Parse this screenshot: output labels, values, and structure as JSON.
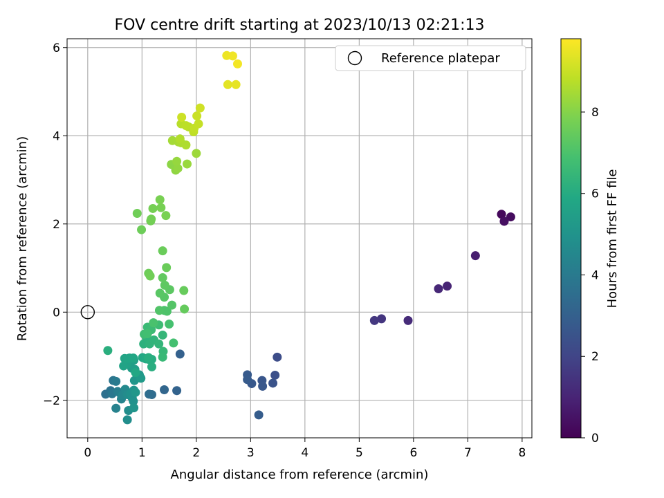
{
  "chart_data": {
    "type": "scatter",
    "title": "FOV centre drift starting at 2023/10/13 02:21:13",
    "xlabel": "Angular distance from reference (arcmin)",
    "ylabel": "Rotation from reference (arcmin)",
    "xlim": [
      -0.38,
      8.18
    ],
    "ylim": [
      -2.85,
      6.2
    ],
    "xticks": [
      0,
      1,
      2,
      3,
      4,
      5,
      6,
      7,
      8
    ],
    "yticks": [
      -2,
      0,
      2,
      4,
      6
    ],
    "grid": true,
    "legend": {
      "placement": "top-right",
      "entries": [
        "Reference platepar"
      ]
    },
    "reference_point": {
      "name": "Reference platepar",
      "x": 0,
      "y": 0
    },
    "colorbar": {
      "label": "Hours from first FF file",
      "colormap": "viridis",
      "range": [
        0,
        9.8
      ],
      "ticks": [
        0,
        2,
        4,
        6,
        8
      ]
    },
    "series": [
      {
        "points": [
          [
            7.62,
            2.22,
            0.2
          ],
          [
            7.79,
            2.16,
            0.3
          ],
          [
            7.67,
            2.06,
            0.4
          ],
          [
            7.14,
            1.28,
            0.8
          ],
          [
            6.62,
            0.59,
            1.0
          ],
          [
            6.46,
            0.53,
            1.1
          ],
          [
            5.9,
            -0.19,
            1.2
          ],
          [
            5.41,
            -0.15,
            1.5
          ],
          [
            5.28,
            -0.19,
            1.6
          ],
          [
            3.49,
            -1.02,
            2.3
          ],
          [
            3.45,
            -1.43,
            2.4
          ],
          [
            3.41,
            -1.61,
            2.5
          ],
          [
            3.21,
            -1.55,
            2.6
          ],
          [
            3.22,
            -1.68,
            2.65
          ],
          [
            3.02,
            -1.62,
            2.7
          ],
          [
            2.94,
            -1.42,
            2.75
          ],
          [
            2.94,
            -1.53,
            2.8
          ],
          [
            3.15,
            -2.33,
            2.85
          ],
          [
            1.7,
            -0.95,
            3.0
          ],
          [
            1.64,
            -1.78,
            3.1
          ],
          [
            1.41,
            -1.76,
            3.2
          ],
          [
            1.18,
            -1.87,
            3.4
          ],
          [
            1.13,
            -1.86,
            3.5
          ],
          [
            0.33,
            -1.86,
            3.6
          ],
          [
            0.42,
            -1.78,
            3.7
          ],
          [
            0.47,
            -1.55,
            3.8
          ],
          [
            0.45,
            -1.85,
            3.9
          ],
          [
            0.52,
            -1.57,
            4.0
          ],
          [
            0.55,
            -1.8,
            4.1
          ],
          [
            0.59,
            -1.83,
            4.2
          ],
          [
            0.52,
            -2.18,
            4.3
          ],
          [
            0.62,
            -1.97,
            4.4
          ],
          [
            0.64,
            -1.88,
            4.5
          ],
          [
            0.69,
            -1.75,
            4.6
          ],
          [
            0.73,
            -1.87,
            4.7
          ],
          [
            0.75,
            -2.23,
            4.75
          ],
          [
            0.73,
            -2.44,
            4.8
          ],
          [
            0.79,
            -1.85,
            4.85
          ],
          [
            0.82,
            -1.95,
            4.9
          ],
          [
            0.84,
            -2.02,
            4.95
          ],
          [
            0.85,
            -1.77,
            5.0
          ],
          [
            0.85,
            -2.17,
            5.05
          ],
          [
            0.86,
            -1.55,
            5.1
          ],
          [
            0.88,
            -1.82,
            5.15
          ],
          [
            0.95,
            -1.42,
            5.2
          ],
          [
            0.97,
            -1.48,
            5.25
          ],
          [
            0.98,
            -1.5,
            5.3
          ],
          [
            0.81,
            -1.27,
            5.4
          ],
          [
            0.87,
            -1.3,
            5.45
          ],
          [
            0.85,
            -1.09,
            5.5
          ],
          [
            0.77,
            -1.04,
            5.55
          ],
          [
            0.73,
            -1.18,
            5.6
          ],
          [
            0.66,
            -1.22,
            5.65
          ],
          [
            0.68,
            -1.05,
            5.7
          ],
          [
            0.75,
            -1.05,
            5.75
          ],
          [
            0.84,
            -1.04,
            5.8
          ],
          [
            0.88,
            -1.37,
            5.85
          ],
          [
            1.01,
            -1.03,
            5.9
          ],
          [
            1.07,
            -1.06,
            5.95
          ],
          [
            1.12,
            -1.07,
            6.0
          ],
          [
            1.18,
            -1.07,
            6.05
          ],
          [
            1.18,
            -1.24,
            6.1
          ],
          [
            1.12,
            -1.03,
            6.12
          ],
          [
            0.37,
            -0.87,
            6.15
          ],
          [
            1.03,
            -0.72,
            6.2
          ],
          [
            1.08,
            -0.57,
            6.25
          ],
          [
            1.14,
            -0.72,
            6.3
          ],
          [
            1.22,
            -0.63,
            6.35
          ],
          [
            1.31,
            -0.72,
            6.4
          ],
          [
            1.38,
            -0.52,
            6.45
          ],
          [
            1.39,
            -0.89,
            6.5
          ],
          [
            1.38,
            -1.02,
            6.55
          ],
          [
            1.1,
            -0.34,
            6.6
          ],
          [
            1.17,
            -0.4,
            6.65
          ],
          [
            1.31,
            -0.29,
            6.7
          ],
          [
            1.04,
            -0.5,
            6.75
          ],
          [
            1.1,
            -0.49,
            6.8
          ],
          [
            1.58,
            -0.7,
            6.85
          ],
          [
            1.5,
            -0.27,
            6.9
          ],
          [
            1.21,
            -0.24,
            6.95
          ],
          [
            1.41,
            0.04,
            7.0
          ],
          [
            1.46,
            0.02,
            7.05
          ],
          [
            1.32,
            0.04,
            7.1
          ],
          [
            1.55,
            0.16,
            7.15
          ],
          [
            1.41,
            0.34,
            7.2
          ],
          [
            1.33,
            0.43,
            7.25
          ],
          [
            1.51,
            0.51,
            7.3
          ],
          [
            1.42,
            0.61,
            7.35
          ],
          [
            1.38,
            0.78,
            7.4
          ],
          [
            1.78,
            0.07,
            7.45
          ],
          [
            1.77,
            0.49,
            7.5
          ],
          [
            1.45,
            1.01,
            7.55
          ],
          [
            1.38,
            1.39,
            7.55
          ],
          [
            1.12,
            0.88,
            7.6
          ],
          [
            1.15,
            0.82,
            7.65
          ],
          [
            0.99,
            1.87,
            7.6
          ],
          [
            0.91,
            2.24,
            7.65
          ],
          [
            1.16,
            2.07,
            7.7
          ],
          [
            1.17,
            2.11,
            7.72
          ],
          [
            1.2,
            2.35,
            7.75
          ],
          [
            1.35,
            2.37,
            7.78
          ],
          [
            1.33,
            2.55,
            7.8
          ],
          [
            1.44,
            2.19,
            7.82
          ],
          [
            1.54,
            3.35,
            8.1
          ],
          [
            1.62,
            3.22,
            8.15
          ],
          [
            1.66,
            3.26,
            8.2
          ],
          [
            1.64,
            3.42,
            8.25
          ],
          [
            1.83,
            3.36,
            8.3
          ],
          [
            2.0,
            3.6,
            8.35
          ],
          [
            1.56,
            3.89,
            8.45
          ],
          [
            1.67,
            3.86,
            8.5
          ],
          [
            1.72,
            3.84,
            8.55
          ],
          [
            1.81,
            3.79,
            8.6
          ],
          [
            1.7,
            3.93,
            8.65
          ],
          [
            1.86,
            4.2,
            8.7
          ],
          [
            1.72,
            4.27,
            8.75
          ],
          [
            1.81,
            4.23,
            8.8
          ],
          [
            1.95,
            4.09,
            8.85
          ],
          [
            1.96,
            4.17,
            8.9
          ],
          [
            2.04,
            4.27,
            8.95
          ],
          [
            2.01,
            4.45,
            9.0
          ],
          [
            1.73,
            4.42,
            9.05
          ],
          [
            2.07,
            4.63,
            9.1
          ],
          [
            2.58,
            5.16,
            9.4
          ],
          [
            2.73,
            5.16,
            9.45
          ],
          [
            2.56,
            5.82,
            9.55
          ],
          [
            2.67,
            5.81,
            9.6
          ],
          [
            2.76,
            5.63,
            9.65
          ]
        ]
      }
    ]
  }
}
